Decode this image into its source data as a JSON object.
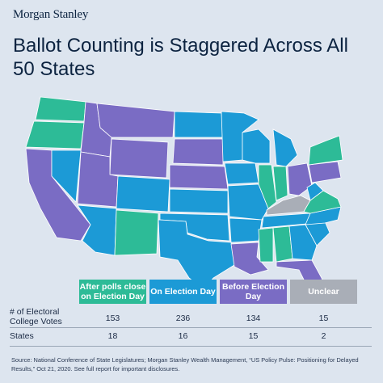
{
  "brand": "Morgan Stanley",
  "title": "Ballot Counting is Staggered Across All 50 States",
  "colors": {
    "after_polls": "#2dbb97",
    "election_day": "#1c9ad6",
    "before": "#7a6cc4",
    "unclear": "#a9aeb7",
    "background": "#dde5ef"
  },
  "table": {
    "headers": [
      "After polls close on Election Day",
      "On Election Day",
      "Before Election Day",
      "Unclear"
    ],
    "rows": [
      {
        "label": "# of Electoral College Votes",
        "values": [
          "153",
          "236",
          "134",
          "15"
        ]
      },
      {
        "label": "States",
        "values": [
          "18",
          "16",
          "15",
          "2"
        ]
      }
    ]
  },
  "source": "Source: National Conference of State Legislatures; Morgan Stanley Wealth Management, “US Policy Pulse: Positioning for Delayed Results,” Oct 21, 2020. See full report for important disclosures."
}
